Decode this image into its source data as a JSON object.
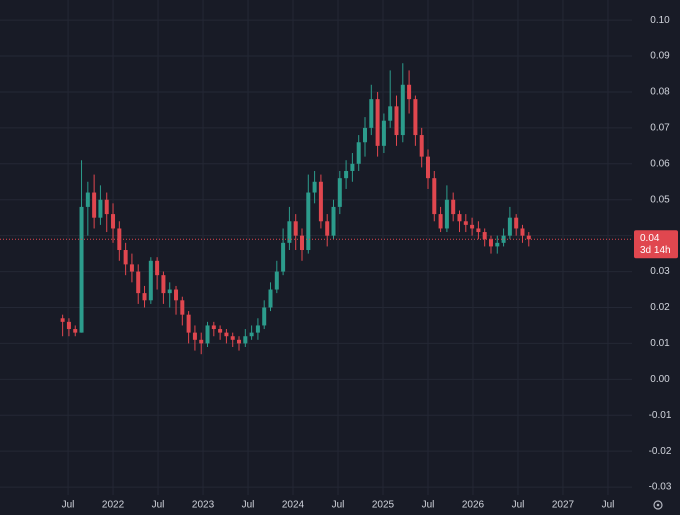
{
  "chart_data": {
    "type": "candlestick",
    "background": "#181b26",
    "grid": true,
    "grid_color": "#242835",
    "up_color": "#2c9c8c",
    "down_color": "#e0474f",
    "xlim": [
      2020.744,
      2027.767
    ],
    "ylim": [
      -0.0322,
      0.1056
    ],
    "xticks": [
      {
        "value": 2021.5,
        "label": "Jul"
      },
      2022,
      {
        "value": 2022.5,
        "label": "Jul"
      },
      2023,
      {
        "value": 2023.5,
        "label": "Jul"
      },
      2024,
      {
        "value": 2024.5,
        "label": "Jul"
      },
      2025,
      {
        "value": 2025.5,
        "label": "Jul"
      },
      2026,
      {
        "value": 2026.5,
        "label": "Jul"
      },
      2027,
      {
        "value": 2027.5,
        "label": "Jul"
      }
    ],
    "yticks": [
      {
        "value": 0.1,
        "label": "0.10"
      },
      0.09,
      0.08,
      0.07,
      0.06,
      0.05,
      0.04,
      0.03,
      0.02,
      0.01,
      {
        "value": 0,
        "label": "0.00"
      },
      -0.01,
      -0.02,
      -0.03
    ],
    "x": [
      2021.44,
      2021.51,
      2021.58,
      2021.65,
      2021.72,
      2021.79,
      2021.86,
      2021.93,
      2022.0,
      2022.07,
      2022.14,
      2022.21,
      2022.28,
      2022.35,
      2022.42,
      2022.49,
      2022.56,
      2022.63,
      2022.7,
      2022.77,
      2022.84,
      2022.91,
      2022.98,
      2023.05,
      2023.12,
      2023.19,
      2023.26,
      2023.33,
      2023.4,
      2023.47,
      2023.54,
      2023.61,
      2023.68,
      2023.75,
      2023.82,
      2023.89,
      2023.96,
      2024.03,
      2024.1,
      2024.17,
      2024.24,
      2024.31,
      2024.38,
      2024.45,
      2024.52,
      2024.59,
      2024.66,
      2024.73,
      2024.8,
      2024.87,
      2024.94,
      2025.01,
      2025.08,
      2025.15,
      2025.22,
      2025.29,
      2025.36,
      2025.43,
      2025.5,
      2025.57,
      2025.64,
      2025.71,
      2025.78,
      2025.85,
      2025.92,
      2025.99,
      2026.06,
      2026.13,
      2026.2,
      2026.27,
      2026.34,
      2026.41,
      2026.48,
      2026.55,
      2026.62
    ],
    "open": [
      0.017,
      0.016,
      0.014,
      0.013,
      0.048,
      0.052,
      0.045,
      0.05,
      0.046,
      0.042,
      0.036,
      0.032,
      0.03,
      0.024,
      0.022,
      0.033,
      0.029,
      0.024,
      0.025,
      0.022,
      0.018,
      0.013,
      0.011,
      0.01,
      0.015,
      0.014,
      0.013,
      0.012,
      0.011,
      0.01,
      0.012,
      0.013,
      0.015,
      0.02,
      0.025,
      0.03,
      0.038,
      0.044,
      0.04,
      0.036,
      0.052,
      0.055,
      0.044,
      0.04,
      0.048,
      0.056,
      0.058,
      0.06,
      0.066,
      0.07,
      0.078,
      0.065,
      0.072,
      0.076,
      0.068,
      0.082,
      0.078,
      0.068,
      0.062,
      0.056,
      0.046,
      0.042,
      0.05,
      0.046,
      0.044,
      0.043,
      0.042,
      0.041,
      0.039,
      0.037,
      0.038,
      0.04,
      0.045,
      0.042,
      0.04
    ],
    "high": [
      0.018,
      0.017,
      0.015,
      0.061,
      0.055,
      0.057,
      0.054,
      0.052,
      0.049,
      0.044,
      0.038,
      0.035,
      0.032,
      0.026,
      0.034,
      0.034,
      0.03,
      0.027,
      0.026,
      0.023,
      0.019,
      0.015,
      0.013,
      0.016,
      0.016,
      0.015,
      0.014,
      0.013,
      0.012,
      0.014,
      0.015,
      0.017,
      0.022,
      0.027,
      0.033,
      0.042,
      0.048,
      0.046,
      0.042,
      0.057,
      0.058,
      0.057,
      0.046,
      0.05,
      0.058,
      0.061,
      0.063,
      0.068,
      0.073,
      0.082,
      0.08,
      0.074,
      0.086,
      0.079,
      0.088,
      0.086,
      0.079,
      0.07,
      0.064,
      0.058,
      0.048,
      0.054,
      0.052,
      0.047,
      0.046,
      0.045,
      0.044,
      0.042,
      0.04,
      0.04,
      0.042,
      0.048,
      0.046,
      0.043,
      0.041
    ],
    "low": [
      0.012,
      0.012,
      0.012,
      0.013,
      0.04,
      0.042,
      0.043,
      0.041,
      0.038,
      0.033,
      0.029,
      0.027,
      0.021,
      0.02,
      0.021,
      0.025,
      0.021,
      0.02,
      0.018,
      0.015,
      0.01,
      0.008,
      0.007,
      0.009,
      0.012,
      0.011,
      0.01,
      0.009,
      0.008,
      0.009,
      0.011,
      0.011,
      0.014,
      0.019,
      0.024,
      0.029,
      0.036,
      0.036,
      0.033,
      0.035,
      0.049,
      0.042,
      0.037,
      0.039,
      0.046,
      0.053,
      0.055,
      0.058,
      0.062,
      0.068,
      0.062,
      0.063,
      0.07,
      0.065,
      0.066,
      0.074,
      0.065,
      0.059,
      0.053,
      0.044,
      0.041,
      0.041,
      0.044,
      0.041,
      0.041,
      0.04,
      0.039,
      0.037,
      0.035,
      0.035,
      0.037,
      0.039,
      0.04,
      0.038,
      0.037
    ],
    "close": [
      0.016,
      0.014,
      0.013,
      0.048,
      0.052,
      0.045,
      0.05,
      0.046,
      0.042,
      0.036,
      0.032,
      0.03,
      0.024,
      0.022,
      0.033,
      0.029,
      0.024,
      0.025,
      0.022,
      0.018,
      0.013,
      0.011,
      0.01,
      0.015,
      0.014,
      0.013,
      0.012,
      0.011,
      0.01,
      0.012,
      0.013,
      0.015,
      0.02,
      0.025,
      0.03,
      0.038,
      0.044,
      0.04,
      0.036,
      0.052,
      0.055,
      0.044,
      0.04,
      0.048,
      0.056,
      0.058,
      0.06,
      0.066,
      0.07,
      0.078,
      0.065,
      0.072,
      0.076,
      0.068,
      0.082,
      0.078,
      0.068,
      0.062,
      0.056,
      0.046,
      0.042,
      0.05,
      0.046,
      0.044,
      0.043,
      0.042,
      0.041,
      0.039,
      0.037,
      0.038,
      0.04,
      0.045,
      0.042,
      0.04,
      0.039
    ],
    "last_price": {
      "value": 0.039,
      "label": "0.04",
      "countdown": "3d 14h",
      "color": "#e0474f"
    }
  }
}
